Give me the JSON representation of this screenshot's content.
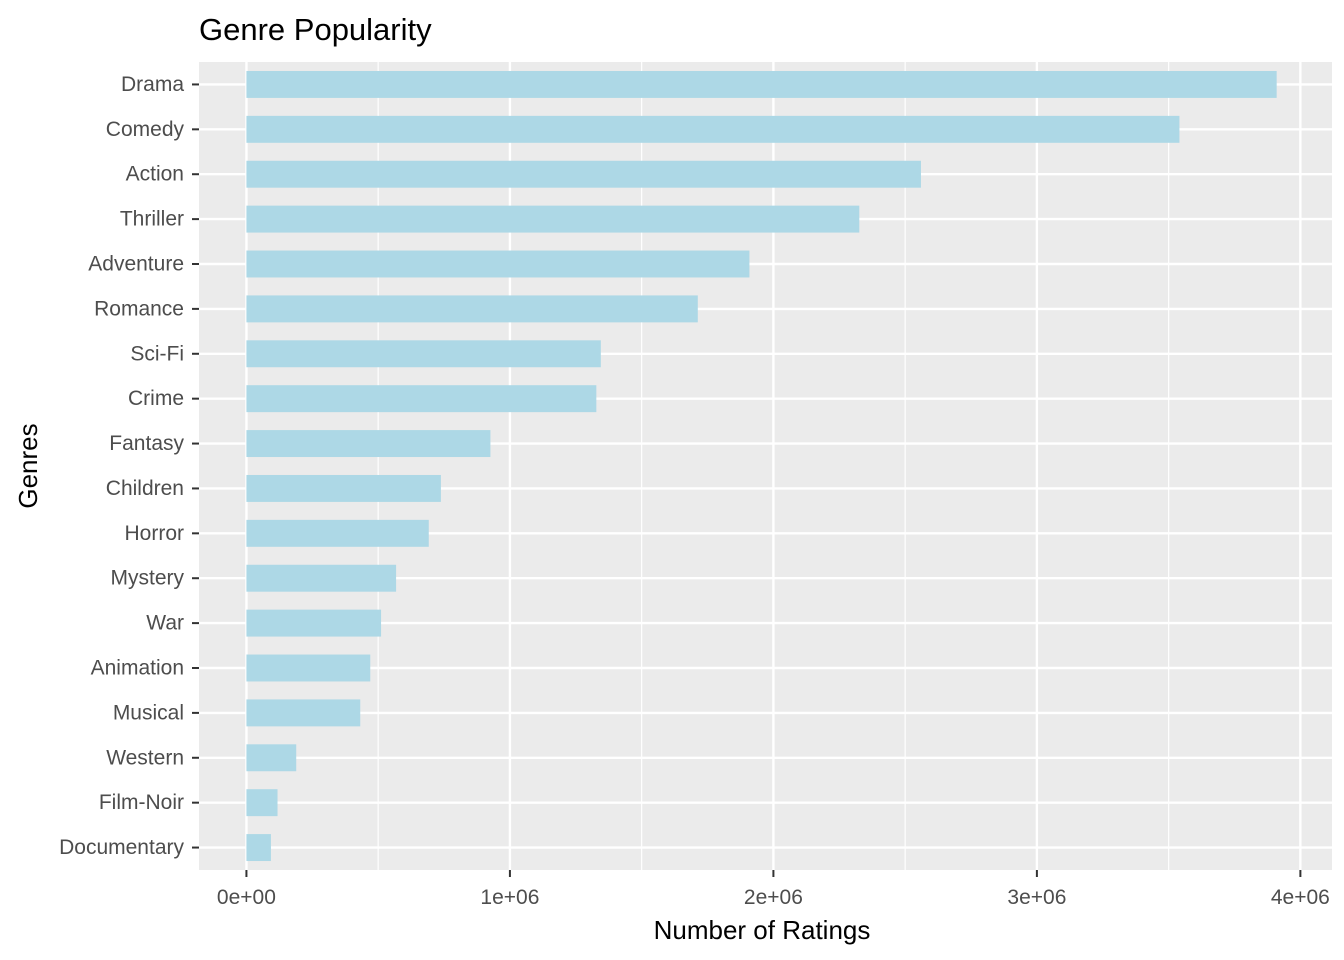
{
  "chart_data": {
    "type": "bar",
    "orientation": "horizontal",
    "title": "Genre Popularity",
    "xlabel": "Number of Ratings",
    "ylabel": "Genres",
    "categories": [
      "Drama",
      "Comedy",
      "Action",
      "Thriller",
      "Adventure",
      "Romance",
      "Sci-Fi",
      "Crime",
      "Fantasy",
      "Children",
      "Horror",
      "Mystery",
      "War",
      "Animation",
      "Musical",
      "Western",
      "Film-Noir",
      "Documentary"
    ],
    "values": [
      3910000,
      3541000,
      2560000,
      2326000,
      1909000,
      1713000,
      1345000,
      1328000,
      926000,
      738000,
      692000,
      568000,
      511000,
      470000,
      432000,
      189000,
      118000,
      93000
    ],
    "xlim": [
      -180000,
      4120000
    ],
    "xticks": [
      0,
      1000000,
      2000000,
      3000000,
      4000000
    ],
    "xtick_labels": [
      "0e+00",
      "1e+06",
      "2e+06",
      "3e+06",
      "4e+06"
    ],
    "grid": true,
    "colors": {
      "bar": "#add8e6",
      "panel": "#ebebeb",
      "grid_major": "#ffffff",
      "tick_text": "#4d4d4d"
    }
  }
}
